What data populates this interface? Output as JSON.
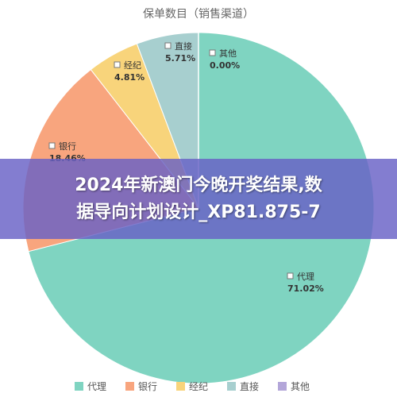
{
  "chart_data": {
    "type": "pie",
    "title": "保单数目（销售渠道）",
    "slices": [
      {
        "label": "代理",
        "value": 71.02,
        "pct_label": "71.02%",
        "color": "#7fd4c1"
      },
      {
        "label": "银行",
        "value": 18.46,
        "pct_label": "18.46%",
        "color": "#f8a57e"
      },
      {
        "label": "经纪",
        "value": 4.81,
        "pct_label": "4.81%",
        "color": "#f8d47b"
      },
      {
        "label": "直接",
        "value": 5.71,
        "pct_label": "5.71%",
        "color": "#a7cfcf"
      },
      {
        "label": "其他",
        "value": 0.0,
        "pct_label": "0.00%",
        "color": "#b3a6d9"
      }
    ],
    "legend_position": "bottom"
  },
  "banner": {
    "line1": "2024年新澳门今晚开奖结果,数",
    "line2": "据导向计划设计_XP81.875-7"
  }
}
